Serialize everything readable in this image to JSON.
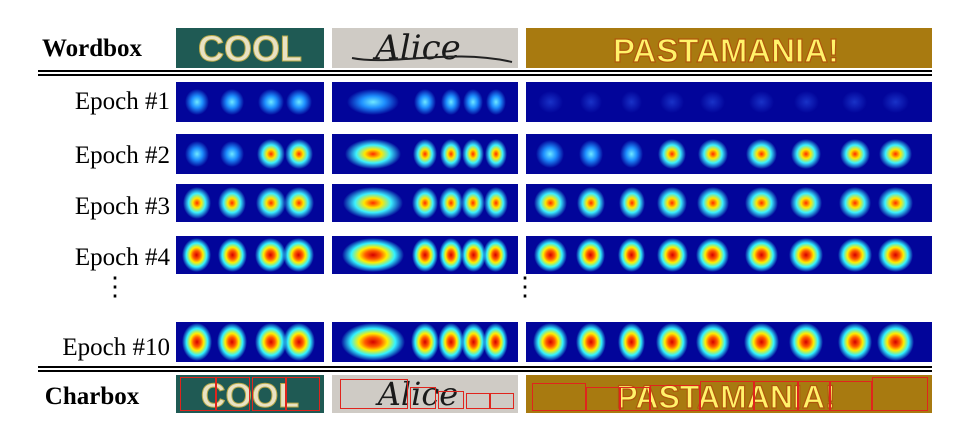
{
  "figure": {
    "header_label": "Wordbox",
    "footer_label": "Charbox",
    "word_images": [
      {
        "word": "COOL",
        "style": "white-yellow letters on dark teal"
      },
      {
        "word": "Alice",
        "style": "black script on grey"
      },
      {
        "word": "PASTAMANIA!",
        "style": "yellow block letters on gold"
      }
    ],
    "epochs": [
      {
        "label": "Epoch #1",
        "intensity": 0.35
      },
      {
        "label": "Epoch #2",
        "intensity": 0.6
      },
      {
        "label": "Epoch #3",
        "intensity": 0.8
      },
      {
        "label": "Epoch #4",
        "intensity": 0.9
      },
      {
        "label": "Epoch #10",
        "intensity": 1.0
      }
    ],
    "ellipsis": "⋮",
    "colors": {
      "heatmap_background": "#02059a",
      "charbox_outline": "#e0241d",
      "cool_bg": "#1f5a54",
      "alice_bg": "#cfcbc5",
      "pasta_bg": "#c79c1a"
    }
  }
}
